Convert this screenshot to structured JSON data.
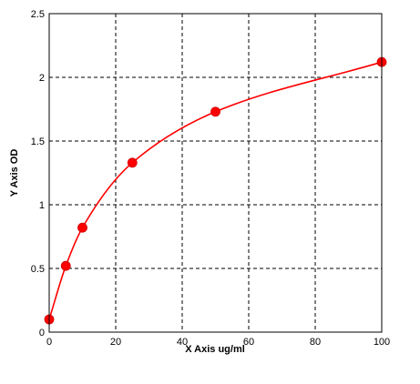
{
  "chart_data": {
    "type": "scatter",
    "title": "",
    "xlabel": "X Axis ug/ml",
    "ylabel": "Y Axis OD",
    "xlim": [
      0,
      100
    ],
    "ylim": [
      0,
      2.5
    ],
    "x_ticks": [
      "0",
      "20",
      "40",
      "60",
      "80",
      "100"
    ],
    "y_ticks": [
      "0",
      "0.5",
      "1",
      "1.5",
      "2",
      "2.5"
    ],
    "grid": true,
    "grid_style": "dashed",
    "legend": "none",
    "series": [
      {
        "points": [
          {
            "x": 0,
            "y": 0.1
          },
          {
            "x": 5,
            "y": 0.52
          },
          {
            "x": 10,
            "y": 0.82
          },
          {
            "x": 25,
            "y": 1.33
          },
          {
            "x": 50,
            "y": 1.73
          },
          {
            "x": 100,
            "y": 2.12
          }
        ],
        "marker_color": "#ff0000",
        "fit_curve_color": "#ff0000"
      }
    ]
  }
}
